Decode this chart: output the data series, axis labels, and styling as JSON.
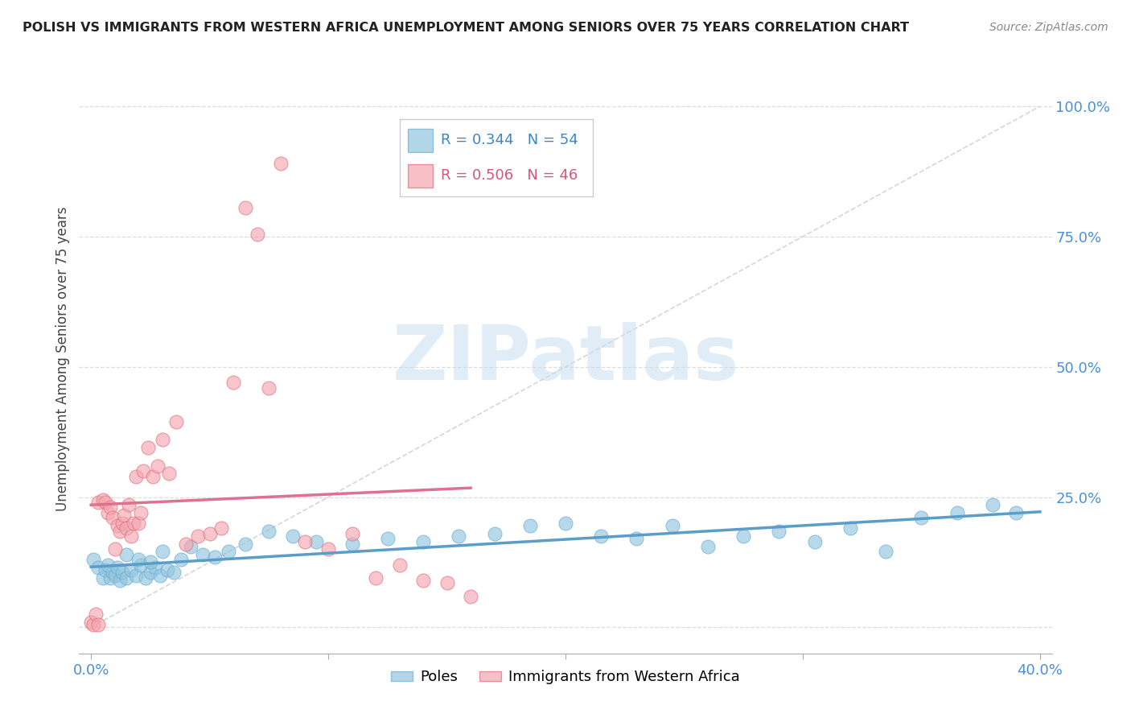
{
  "title": "POLISH VS IMMIGRANTS FROM WESTERN AFRICA UNEMPLOYMENT AMONG SENIORS OVER 75 YEARS CORRELATION CHART",
  "source": "Source: ZipAtlas.com",
  "ylabel": "Unemployment Among Seniors over 75 years",
  "right_yticks": [
    "100.0%",
    "75.0%",
    "50.0%",
    "25.0%"
  ],
  "right_ytick_vals": [
    1.0,
    0.75,
    0.5,
    0.25
  ],
  "xmin": 0.0,
  "xmax": 0.4,
  "ymin": -0.05,
  "ymax": 1.08,
  "poles_color": "#92c5de",
  "poles_edge_color": "#6baed6",
  "immigrants_color": "#f4a6b0",
  "immigrants_edge_color": "#e07080",
  "poles_line_color": "#5b9dc9",
  "immigrants_line_color": "#e07090",
  "poles_R": 0.344,
  "poles_N": 54,
  "immigrants_R": 0.506,
  "immigrants_N": 46,
  "diagonal_line_color": "#cccccc",
  "grid_color": "#dddddd",
  "watermark": "ZIPatlas",
  "watermark_color": "#c8dff0",
  "poles_x": [
    0.001,
    0.003,
    0.005,
    0.006,
    0.007,
    0.008,
    0.009,
    0.01,
    0.011,
    0.012,
    0.013,
    0.015,
    0.017,
    0.019,
    0.021,
    0.023,
    0.025,
    0.027,
    0.029,
    0.032,
    0.035,
    0.038,
    0.042,
    0.047,
    0.052,
    0.058,
    0.065,
    0.075,
    0.085,
    0.095,
    0.11,
    0.125,
    0.14,
    0.155,
    0.17,
    0.185,
    0.2,
    0.215,
    0.23,
    0.245,
    0.26,
    0.275,
    0.29,
    0.305,
    0.32,
    0.335,
    0.35,
    0.365,
    0.38,
    0.39,
    0.015,
    0.02,
    0.025,
    0.03
  ],
  "poles_y": [
    0.13,
    0.115,
    0.095,
    0.11,
    0.12,
    0.095,
    0.105,
    0.1,
    0.115,
    0.09,
    0.105,
    0.095,
    0.11,
    0.1,
    0.12,
    0.095,
    0.105,
    0.115,
    0.1,
    0.11,
    0.105,
    0.13,
    0.155,
    0.14,
    0.135,
    0.145,
    0.16,
    0.185,
    0.175,
    0.165,
    0.16,
    0.17,
    0.165,
    0.175,
    0.18,
    0.195,
    0.2,
    0.175,
    0.17,
    0.195,
    0.155,
    0.175,
    0.185,
    0.165,
    0.19,
    0.145,
    0.21,
    0.22,
    0.235,
    0.22,
    0.14,
    0.13,
    0.125,
    0.145
  ],
  "immigrants_x": [
    0.0,
    0.001,
    0.002,
    0.003,
    0.005,
    0.006,
    0.007,
    0.008,
    0.009,
    0.01,
    0.011,
    0.012,
    0.013,
    0.014,
    0.015,
    0.016,
    0.017,
    0.018,
    0.019,
    0.02,
    0.021,
    0.022,
    0.024,
    0.026,
    0.028,
    0.03,
    0.033,
    0.036,
    0.04,
    0.045,
    0.05,
    0.055,
    0.06,
    0.065,
    0.07,
    0.075,
    0.08,
    0.09,
    0.1,
    0.11,
    0.12,
    0.13,
    0.14,
    0.15,
    0.16,
    0.003
  ],
  "immigrants_y": [
    0.01,
    0.005,
    0.025,
    0.24,
    0.245,
    0.24,
    0.22,
    0.23,
    0.21,
    0.15,
    0.195,
    0.185,
    0.2,
    0.215,
    0.19,
    0.235,
    0.175,
    0.2,
    0.29,
    0.2,
    0.22,
    0.3,
    0.345,
    0.29,
    0.31,
    0.36,
    0.295,
    0.395,
    0.16,
    0.175,
    0.18,
    0.19,
    0.47,
    0.805,
    0.755,
    0.46,
    0.89,
    0.165,
    0.15,
    0.18,
    0.095,
    0.12,
    0.09,
    0.085,
    0.06,
    0.005
  ]
}
